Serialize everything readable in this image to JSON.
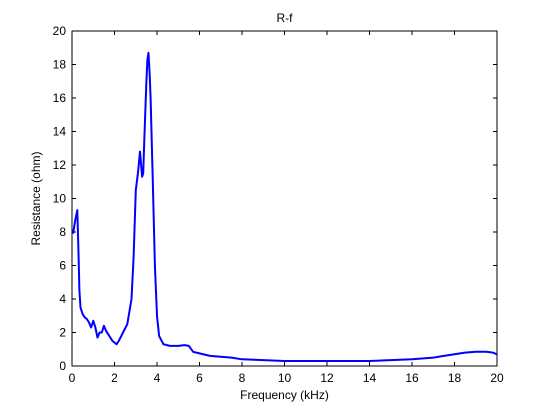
{
  "chart_data": {
    "type": "line",
    "title": "R-f",
    "xlabel": "Frequency (kHz)",
    "ylabel": "Resistance (ohm)",
    "xlim": [
      0,
      20
    ],
    "ylim": [
      0,
      20
    ],
    "x_ticks": [
      "0",
      "2",
      "4",
      "6",
      "8",
      "10",
      "12",
      "14",
      "16",
      "18",
      "20"
    ],
    "y_ticks": [
      "0",
      "2",
      "4",
      "6",
      "8",
      "10",
      "12",
      "14",
      "16",
      "18",
      "20"
    ],
    "grid": false,
    "series": [
      {
        "color": "#0000ff",
        "x": [
          0.05,
          0.15,
          0.25,
          0.3,
          0.35,
          0.4,
          0.5,
          0.6,
          0.7,
          0.8,
          0.9,
          1.0,
          1.1,
          1.2,
          1.3,
          1.4,
          1.5,
          1.6,
          1.7,
          1.8,
          1.9,
          2.0,
          2.1,
          2.2,
          2.4,
          2.6,
          2.8,
          2.9,
          3.0,
          3.1,
          3.2,
          3.3,
          3.35,
          3.4,
          3.5,
          3.55,
          3.6,
          3.65,
          3.7,
          3.8,
          3.9,
          4.0,
          4.1,
          4.3,
          4.6,
          5.0,
          5.3,
          5.5,
          5.7,
          6.0,
          6.5,
          7.0,
          7.5,
          8.0,
          9.0,
          10.0,
          11.0,
          12.0,
          13.0,
          14.0,
          15.0,
          16.0,
          17.0,
          17.5,
          18.0,
          18.5,
          19.0,
          19.5,
          19.8,
          20.0
        ],
        "values": [
          7.9,
          8.7,
          9.3,
          7.0,
          4.5,
          3.5,
          3.1,
          2.9,
          2.8,
          2.6,
          2.3,
          2.7,
          2.3,
          1.7,
          2.0,
          2.0,
          2.4,
          2.1,
          1.9,
          1.7,
          1.5,
          1.4,
          1.3,
          1.5,
          2.0,
          2.5,
          4.0,
          6.5,
          10.5,
          11.5,
          12.8,
          11.3,
          11.5,
          13.5,
          17.0,
          18.3,
          18.7,
          17.5,
          16.0,
          11.0,
          6.0,
          3.0,
          1.8,
          1.3,
          1.2,
          1.2,
          1.25,
          1.2,
          0.85,
          0.75,
          0.6,
          0.55,
          0.5,
          0.4,
          0.35,
          0.3,
          0.3,
          0.3,
          0.3,
          0.3,
          0.35,
          0.4,
          0.5,
          0.6,
          0.7,
          0.8,
          0.85,
          0.85,
          0.8,
          0.7
        ]
      }
    ]
  }
}
